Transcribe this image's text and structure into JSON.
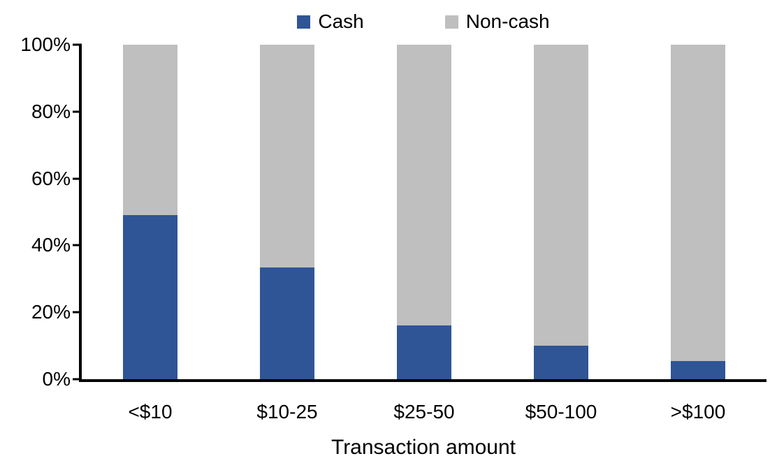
{
  "chart_data": {
    "type": "bar",
    "stacked": true,
    "title": "",
    "xlabel": "Transaction amount",
    "ylabel": "",
    "ylim": [
      0,
      100
    ],
    "yticks": [
      "0%",
      "20%",
      "40%",
      "60%",
      "80%",
      "100%"
    ],
    "grid": false,
    "legend_position": "top-center",
    "categories": [
      "<$10",
      "$10-25",
      "$25-50",
      "$50-100",
      ">$100"
    ],
    "series": [
      {
        "name": "Cash",
        "color": "#2F5596",
        "values": [
          49,
          33.5,
          16,
          10,
          5.5
        ]
      },
      {
        "name": "Non-cash",
        "color": "#BFBFBF",
        "values": [
          51,
          66.5,
          84,
          90,
          94.5
        ]
      }
    ],
    "colors": {
      "axis": "#000000",
      "text": "#000000",
      "background": "#FFFFFF"
    }
  }
}
